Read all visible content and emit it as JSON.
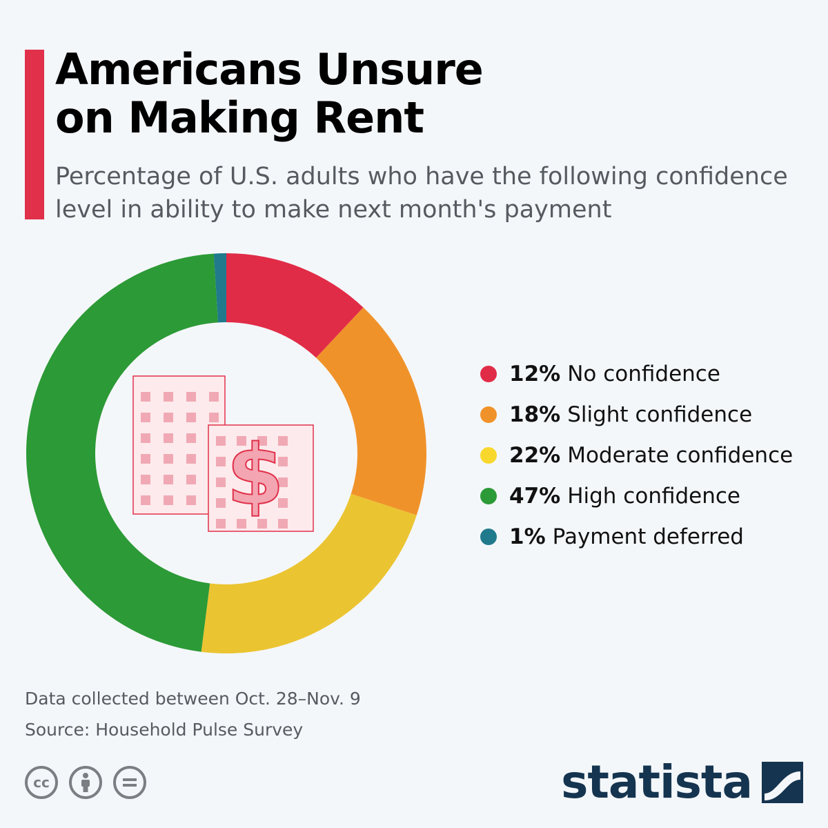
{
  "header": {
    "title_line1": "Americans Unsure",
    "title_line2": "on Making Rent",
    "subtitle_line1": "Percentage of U.S. adults who have the following confidence",
    "subtitle_line2": "level in ability to make next month's payment",
    "accent_color": "#e0304a"
  },
  "chart_data": {
    "type": "pie",
    "variant": "donut",
    "title": "Americans Unsure on Making Rent",
    "start": "12 o'clock, clockwise",
    "center_icon": "building-with-dollar-icon",
    "categories": [
      "No confidence",
      "Slight confidence",
      "Moderate confidence",
      "High confidence",
      "Payment deferred"
    ],
    "values": [
      12,
      18,
      22,
      47,
      1
    ],
    "value_labels": [
      "12%",
      "18%",
      "22%",
      "47%",
      "1%"
    ],
    "colors": [
      "#e12c47",
      "#f0922a",
      "#ebc431",
      "#2c9a36",
      "#207a8c"
    ],
    "legend_colors": [
      "#e12c47",
      "#f0922a",
      "#f8d82c",
      "#2c9a36",
      "#207a8c"
    ],
    "legend_position": "right"
  },
  "footer": {
    "note": "Data collected between Oct. 28–Nov. 9",
    "source": "Source: Household Pulse Survey",
    "cc_label": "cc",
    "license_icons": [
      "creative-commons-icon",
      "attribution-icon",
      "no-derivatives-icon"
    ],
    "brand": "statista",
    "brand_color": "#15344f"
  }
}
